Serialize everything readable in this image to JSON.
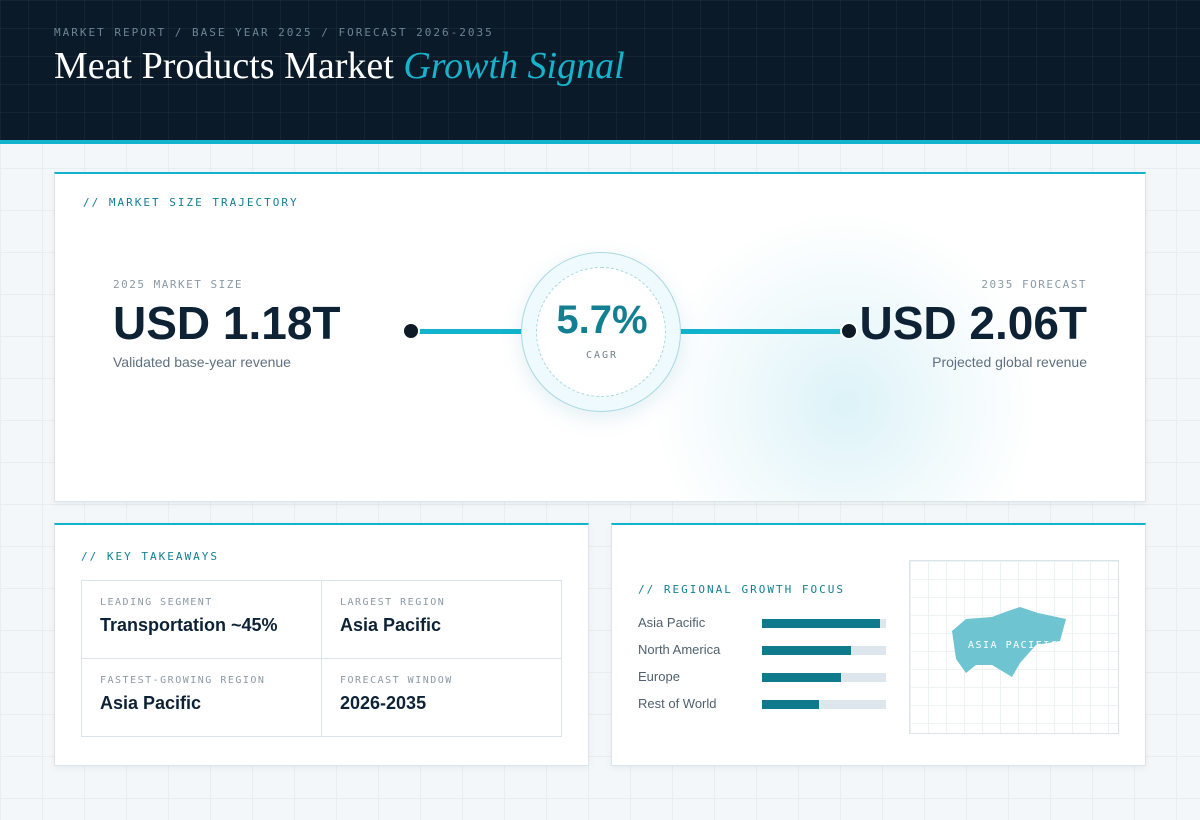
{
  "header": {
    "eyebrow": "MARKET REPORT / BASE YEAR 2025 / FORECAST 2026-2035",
    "title": "Meat Products Market",
    "title_accent": "Growth Signal"
  },
  "trajectory": {
    "label": "// MARKET SIZE TRAJECTORY",
    "start": {
      "label": "2025 MARKET SIZE",
      "value": "USD 1.18T",
      "sub": "Validated base-year revenue"
    },
    "end": {
      "label": "2035 FORECAST",
      "value": "USD 2.06T",
      "sub": "Projected global revenue"
    },
    "cagr": {
      "value": "5.7%",
      "label": "CAGR"
    }
  },
  "takeaways": {
    "label": "// KEY TAKEAWAYS",
    "items": [
      {
        "label": "LEADING SEGMENT",
        "value": "Transportation ~45%"
      },
      {
        "label": "LARGEST REGION",
        "value": "Asia Pacific"
      },
      {
        "label": "FASTEST-GROWING REGION",
        "value": "Asia Pacific"
      },
      {
        "label": "FORECAST WINDOW",
        "value": "2026-2035"
      }
    ]
  },
  "regional": {
    "label": "// REGIONAL GROWTH FOCUS",
    "map_label": "ASIA PACIFIC",
    "accent_color": "#0f7a8c",
    "map_color": "#6fc4d2",
    "rows": [
      {
        "name": "Asia Pacific",
        "level": 0.95
      },
      {
        "name": "North America",
        "level": 0.72
      },
      {
        "name": "Europe",
        "level": 0.64
      },
      {
        "name": "Rest of World",
        "level": 0.46
      }
    ]
  }
}
